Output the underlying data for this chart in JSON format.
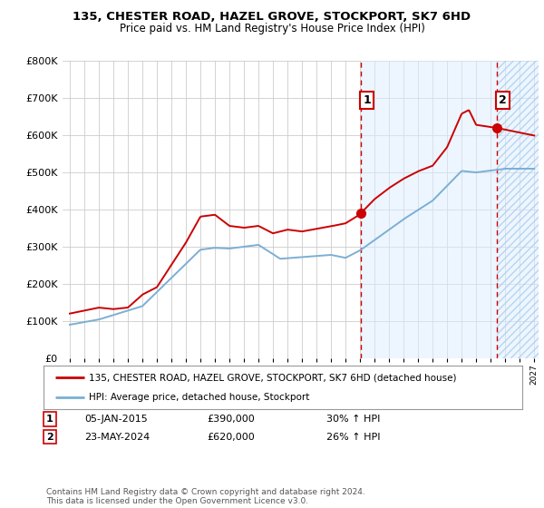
{
  "title": "135, CHESTER ROAD, HAZEL GROVE, STOCKPORT, SK7 6HD",
  "subtitle": "Price paid vs. HM Land Registry's House Price Index (HPI)",
  "legend_line1": "135, CHESTER ROAD, HAZEL GROVE, STOCKPORT, SK7 6HD (detached house)",
  "legend_line2": "HPI: Average price, detached house, Stockport",
  "annotation1_label": "1",
  "annotation1_date": "05-JAN-2015",
  "annotation1_price": "£390,000",
  "annotation1_hpi": "30% ↑ HPI",
  "annotation2_label": "2",
  "annotation2_date": "23-MAY-2024",
  "annotation2_price": "£620,000",
  "annotation2_hpi": "26% ↑ HPI",
  "footer": "Contains HM Land Registry data © Crown copyright and database right 2024.\nThis data is licensed under the Open Government Licence v3.0.",
  "hpi_color": "#7bafd4",
  "price_color": "#cc0000",
  "marker_color": "#cc0000",
  "annotation_box_color": "#cc0000",
  "grid_color": "#cccccc",
  "background_color": "#ffffff",
  "hatch_color": "#ddeeff",
  "ylim": [
    0,
    800000
  ],
  "yticks": [
    0,
    100000,
    200000,
    300000,
    400000,
    500000,
    600000,
    700000,
    800000
  ],
  "sale1_x": 2015.05,
  "sale1_y": 390000,
  "sale2_x": 2024.4,
  "sale2_y": 620000,
  "vline1_x": 2015.05,
  "vline2_x": 2024.4,
  "hatch_start": 2015.05,
  "hatch_end": 2027.3,
  "xlim_left": 1994.5,
  "xlim_right": 2027.3
}
